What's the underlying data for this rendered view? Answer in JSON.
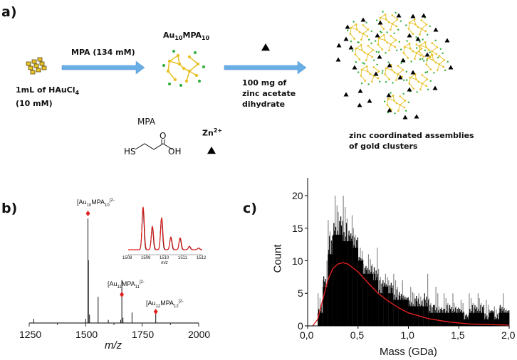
{
  "panel_a": {
    "label": "a)",
    "start_label_line1": "1mL of HAuCl",
    "start_label_sub": "4",
    "start_label_line2": "(10 mM)",
    "arrow1_label": "MPA (134 mM)",
    "product_main": "Au",
    "product_sub1": "10",
    "product_mid": "MPA",
    "product_sub2": "10",
    "arrow2_label_lines": [
      "100 mg of",
      "zinc acetate",
      "dihydrate"
    ],
    "result_label_lines": [
      "zinc coordinated assemblies",
      "of gold clusters"
    ],
    "legend_mpa": "MPA",
    "mpa_hs": "HS",
    "mpa_o": "O",
    "mpa_oh": "OH",
    "legend_zn": "Zn",
    "legend_zn_sup": "2+",
    "colors": {
      "arrow": "#6aaee6",
      "gold": "#e8c22a",
      "ligand": "#2fae3a",
      "zinc": "#000000"
    }
  },
  "chart_data": [
    {
      "panel_label": "b)",
      "type": "line",
      "xlabel": "m/z",
      "xlim": [
        1250,
        2000
      ],
      "xticks": [
        "1250",
        "1500",
        "1750",
        "2000"
      ],
      "peaks": [
        {
          "x": 1270,
          "y": 0.04
        },
        {
          "x": 1500,
          "y": 0.04
        },
        {
          "x": 1510,
          "y": 1.0
        },
        {
          "x": 1512,
          "y": 0.6
        },
        {
          "x": 1517,
          "y": 0.08
        },
        {
          "x": 1555,
          "y": 0.25
        },
        {
          "x": 1600,
          "y": 0.03
        },
        {
          "x": 1655,
          "y": 0.03
        },
        {
          "x": 1660,
          "y": 0.41
        },
        {
          "x": 1665,
          "y": 0.05
        },
        {
          "x": 1705,
          "y": 0.1
        },
        {
          "x": 1810,
          "y": 0.1
        }
      ],
      "annotations": [
        {
          "main": "[Au",
          "s1": "10",
          "m": "MPA",
          "s2": "10",
          "sup": "]2-",
          "x": 1510
        },
        {
          "main": "[Au",
          "s1": "11",
          "m": "MPA",
          "s2": "11",
          "sup": "]2-",
          "x": 1660
        },
        {
          "main": "[Au",
          "s1": "12",
          "m": "MPA",
          "s2": "12",
          "sup": "]2-",
          "x": 1810
        }
      ],
      "marker_color": "#e02020",
      "inset": {
        "xlim": [
          1508,
          1512
        ],
        "xticks": [
          "1508",
          "1509",
          "1510",
          "1511",
          "1512"
        ],
        "xlabel": "m/z",
        "peaks": [
          {
            "x": 1508.8,
            "y": 1.0
          },
          {
            "x": 1509.3,
            "y": 0.55
          },
          {
            "x": 1509.8,
            "y": 0.75
          },
          {
            "x": 1510.3,
            "y": 0.3
          },
          {
            "x": 1510.8,
            "y": 0.28
          },
          {
            "x": 1511.3,
            "y": 0.08
          },
          {
            "x": 1511.8,
            "y": 0.04
          }
        ],
        "series_colors": [
          "#000000",
          "#e02020"
        ]
      }
    },
    {
      "panel_label": "c)",
      "type": "bar",
      "xlabel": "Mass (GDa)",
      "ylabel": "Count",
      "xlim": [
        0,
        2
      ],
      "ylim": [
        0,
        22
      ],
      "xticks": [
        "0,0",
        "0,5",
        "1,0",
        "1,5",
        "2,0"
      ],
      "yticks": [
        "0",
        "5",
        "10",
        "15",
        "20"
      ],
      "bin_width": 0.05,
      "bin_starts": [
        0,
        0.05,
        0.1,
        0.15,
        0.2,
        0.25,
        0.3,
        0.35,
        0.4,
        0.45,
        0.5,
        0.55,
        0.6,
        0.65,
        0.7,
        0.75,
        0.8,
        0.85,
        0.9,
        0.95,
        1.0,
        1.05,
        1.1,
        1.15,
        1.2,
        1.25,
        1.3,
        1.35,
        1.4,
        1.45,
        1.5,
        1.55,
        1.6,
        1.65,
        1.7,
        1.75,
        1.8,
        1.85,
        1.9,
        1.95
      ],
      "counts": [
        0,
        0,
        2,
        6,
        11,
        14,
        14,
        13,
        13,
        12,
        10,
        8,
        8,
        7,
        5,
        6,
        5,
        4,
        4,
        4,
        3,
        3,
        3,
        3,
        2,
        2,
        2,
        2,
        2,
        2,
        2,
        1,
        2,
        2,
        2,
        1,
        2,
        1,
        2,
        2
      ],
      "max_counts": [
        0,
        0,
        5,
        10,
        18,
        20,
        21,
        20,
        17,
        16,
        12,
        11,
        11,
        12,
        10,
        8,
        9,
        8,
        7,
        5,
        6,
        7,
        5,
        8,
        5,
        6,
        4,
        5,
        5,
        4,
        4,
        3,
        5,
        5,
        5,
        4,
        3,
        3,
        5,
        3
      ],
      "fit": {
        "x": [
          0.05,
          0.1,
          0.15,
          0.2,
          0.25,
          0.3,
          0.35,
          0.4,
          0.5,
          0.6,
          0.7,
          0.8,
          0.9,
          1.0,
          1.2,
          1.4,
          1.6,
          1.8,
          2.0
        ],
        "y": [
          0,
          1,
          4,
          7,
          8.8,
          9.5,
          9.7,
          9.5,
          8.3,
          6.6,
          5,
          3.8,
          2.8,
          2.0,
          1.1,
          0.6,
          0.3,
          0.2,
          0.1
        ],
        "color": "#e02020"
      },
      "bar_color": "#000000"
    }
  ]
}
